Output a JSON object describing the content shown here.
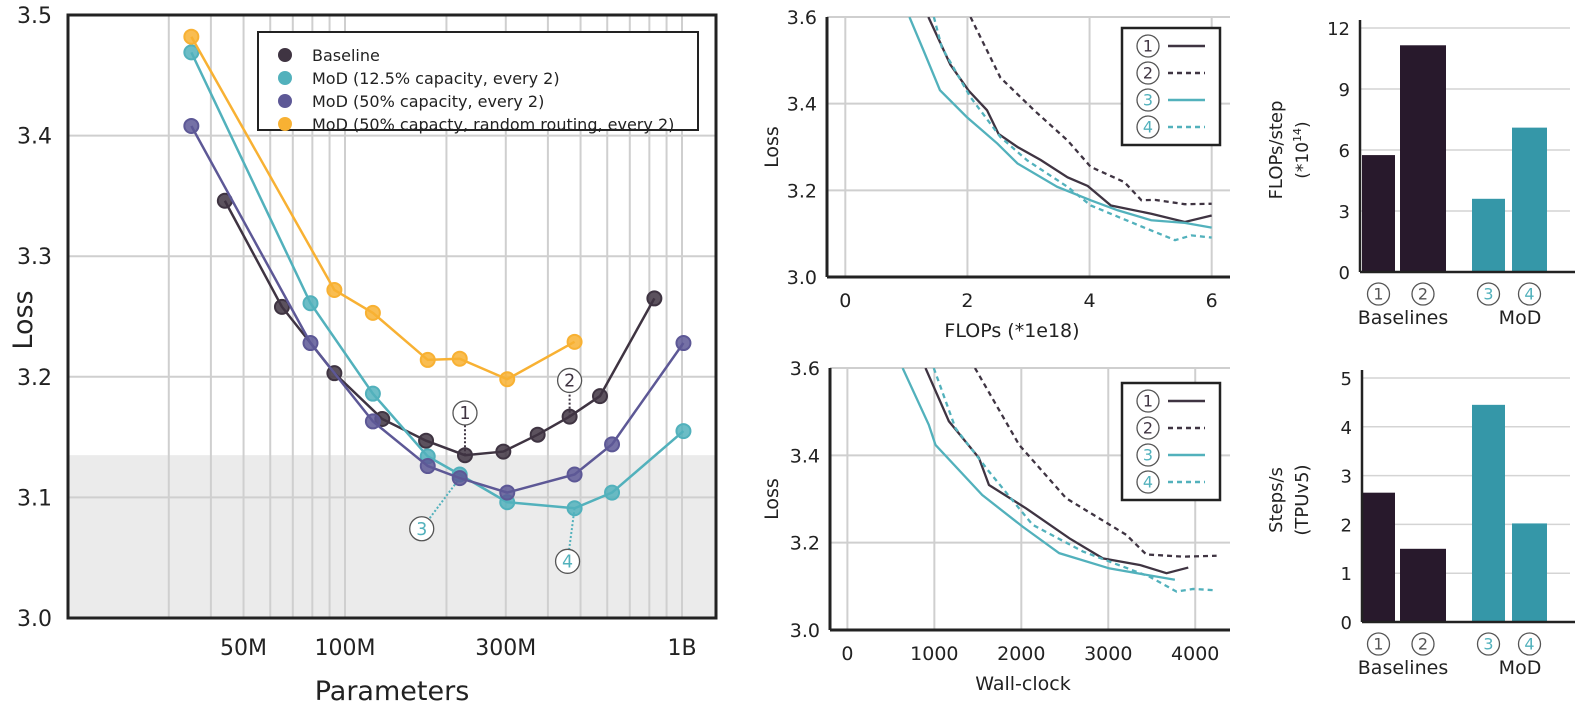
{
  "colors": {
    "baseline": "#3f3442",
    "mod125": "#52b1bc",
    "mod50": "#5d5896",
    "random": "#f8b133",
    "bar_dark": "#28192c",
    "bar_teal": "#3597a8",
    "shade": "#ebebeb",
    "grid": "#cfcfcf"
  },
  "chart_data": [
    {
      "id": "scaling",
      "type": "line",
      "xlabel": "Parameters",
      "ylabel": "Loss",
      "xscale": "log",
      "xticks": [
        {
          "value": 50000000,
          "label": "50M"
        },
        {
          "value": 100000000,
          "label": "100M"
        },
        {
          "value": 300000000,
          "label": "300M"
        },
        {
          "value": 1000000000,
          "label": "1B"
        }
      ],
      "ylim": [
        3.0,
        3.5
      ],
      "yticks": [
        "3.0",
        "3.1",
        "3.2",
        "3.3",
        "3.4",
        "3.5"
      ],
      "grid": true,
      "legend_position": "top-right",
      "shaded_below": 3.135,
      "series": [
        {
          "name": "Baseline",
          "color_key": "baseline",
          "x": [
            44000000,
            65000000,
            93000000,
            129000000,
            174000000,
            227000000,
            295000000,
            373000000,
            464000000,
            571000000,
            828000000
          ],
          "y": [
            3.346,
            3.258,
            3.203,
            3.165,
            3.147,
            3.135,
            3.138,
            3.152,
            3.167,
            3.184,
            3.265
          ]
        },
        {
          "name": "MoD (12.5% capacity, every 2)",
          "color_key": "mod125",
          "x": [
            35000000,
            79000000,
            121000000,
            176000000,
            219000000,
            303000000,
            480000000,
            620000000,
            1010000000
          ],
          "y": [
            3.469,
            3.261,
            3.186,
            3.134,
            3.119,
            3.096,
            3.091,
            3.104,
            3.155
          ]
        },
        {
          "name": "MoD (50% capacity, every 2)",
          "color_key": "mod50",
          "x": [
            35000000,
            79000000,
            121000000,
            176000000,
            219000000,
            303000000,
            480000000,
            620000000,
            1010000000
          ],
          "y": [
            3.408,
            3.228,
            3.163,
            3.126,
            3.116,
            3.104,
            3.119,
            3.144,
            3.228
          ]
        },
        {
          "name": "MoD (50% capacty, random routing, every 2)",
          "color_key": "random",
          "x": [
            35000000,
            93000000,
            121000000,
            176000000,
            219000000,
            303000000,
            480000000
          ],
          "y": [
            3.482,
            3.272,
            3.253,
            3.214,
            3.215,
            3.198,
            3.229
          ]
        }
      ],
      "annotations": [
        {
          "label": "1",
          "color_key": "baseline",
          "x": 227000000,
          "y": 3.135,
          "text_y": 3.17
        },
        {
          "label": "2",
          "color_key": "baseline",
          "x": 464000000,
          "y": 3.167,
          "text_y": 3.197
        },
        {
          "label": "3",
          "color_key": "mod125",
          "x": 219000000,
          "y": 3.116,
          "text_y": 3.074
        },
        {
          "label": "4",
          "color_key": "mod125",
          "x": 480000000,
          "y": 3.091,
          "text_y": 3.047
        }
      ]
    },
    {
      "id": "flops",
      "type": "line",
      "xlabel": "FLOPs (*1e18)",
      "ylabel": "Loss",
      "xlim": [
        -0.3,
        6.3
      ],
      "ylim": [
        3.0,
        3.6
      ],
      "xticks": [
        "0",
        "2",
        "4",
        "6"
      ],
      "yticks": [
        "3.0",
        "3.2",
        "3.4",
        "3.6"
      ],
      "grid": true,
      "legend_position": "top-right",
      "series": [
        {
          "name": "1",
          "color_key": "baseline",
          "dashed": false,
          "x": [
            1.36,
            1.72,
            2.02,
            2.32,
            2.51,
            2.82,
            3.2,
            3.64,
            3.97,
            4.35,
            5.01,
            5.56,
            6.0
          ],
          "y": [
            3.6,
            3.49,
            3.43,
            3.385,
            3.33,
            3.3,
            3.27,
            3.23,
            3.21,
            3.165,
            3.146,
            3.127,
            3.142
          ]
        },
        {
          "name": "2",
          "color_key": "baseline",
          "dashed": true,
          "x": [
            2.05,
            2.54,
            3.09,
            3.64,
            4.02,
            4.57,
            4.85,
            5.07,
            5.56,
            6.0
          ],
          "y": [
            3.6,
            3.46,
            3.385,
            3.315,
            3.254,
            3.219,
            3.177,
            3.178,
            3.168,
            3.169
          ]
        },
        {
          "name": "3",
          "color_key": "mod125",
          "dashed": false,
          "x": [
            1.05,
            1.28,
            1.55,
            1.99,
            2.49,
            2.82,
            3.47,
            4.02,
            4.46,
            5.01,
            5.56,
            6.0
          ],
          "y": [
            3.6,
            3.523,
            3.431,
            3.369,
            3.308,
            3.262,
            3.208,
            3.177,
            3.154,
            3.131,
            3.125,
            3.114
          ]
        },
        {
          "name": "4",
          "color_key": "mod125",
          "dashed": true,
          "x": [
            1.45,
            1.58,
            2.05,
            2.54,
            2.98,
            3.64,
            4.02,
            4.74,
            5.4,
            5.67,
            6.0
          ],
          "y": [
            3.6,
            3.53,
            3.415,
            3.323,
            3.269,
            3.208,
            3.165,
            3.123,
            3.085,
            3.096,
            3.091
          ]
        }
      ]
    },
    {
      "id": "wallclock",
      "type": "line",
      "xlabel": "Wall-clock",
      "ylabel": "Loss",
      "xlim": [
        -200,
        4400
      ],
      "ylim": [
        3.0,
        3.6
      ],
      "xticks": [
        "0",
        "1000",
        "2000",
        "3000",
        "4000"
      ],
      "yticks": [
        "3.0",
        "3.2",
        "3.4",
        "3.6"
      ],
      "grid": true,
      "legend_position": "top-right",
      "series": [
        {
          "name": "1",
          "color_key": "baseline",
          "dashed": false,
          "x": [
            898,
            1167,
            1513,
            1628,
            2052,
            2553,
            2938,
            3362,
            3670,
            3920
          ],
          "y": [
            3.6,
            3.478,
            3.394,
            3.332,
            3.279,
            3.21,
            3.164,
            3.149,
            3.13,
            3.143
          ]
        },
        {
          "name": "2",
          "color_key": "baseline",
          "dashed": true,
          "x": [
            1467,
            1975,
            2514,
            3207,
            3437,
            3861,
            4246
          ],
          "y": [
            3.6,
            3.424,
            3.302,
            3.218,
            3.173,
            3.168,
            3.17
          ]
        },
        {
          "name": "3",
          "color_key": "mod125",
          "dashed": false,
          "x": [
            635,
            936,
            1013,
            1551,
            2013,
            2436,
            3014,
            3766
          ],
          "y": [
            3.6,
            3.47,
            3.424,
            3.309,
            3.237,
            3.176,
            3.141,
            3.115
          ]
        },
        {
          "name": "4",
          "color_key": "mod125",
          "dashed": true,
          "x": [
            993,
            1243,
            1628,
            2129,
            2706,
            3476,
            3785,
            3977,
            4227
          ],
          "y": [
            3.6,
            3.462,
            3.363,
            3.241,
            3.18,
            3.122,
            3.088,
            3.094,
            3.091
          ]
        }
      ]
    },
    {
      "id": "flops_per_step",
      "type": "bar",
      "ylabel": [
        "FLOPs/step",
        "(*10",
        "14",
        ")"
      ],
      "ylim": [
        0,
        12
      ],
      "yticks": [
        "0",
        "3",
        "6",
        "9",
        "12"
      ],
      "categories": [
        "1",
        "2",
        "3",
        "4"
      ],
      "groups": [
        "Baselines",
        "MoD"
      ],
      "values": [
        5.75,
        11.15,
        3.6,
        7.1
      ]
    },
    {
      "id": "steps_per_sec",
      "type": "bar",
      "ylabel": [
        "Steps/s",
        "(TPUv5)"
      ],
      "ylim": [
        0,
        5
      ],
      "yticks": [
        "0",
        "1",
        "2",
        "3",
        "4",
        "5"
      ],
      "categories": [
        "1",
        "2",
        "3",
        "4"
      ],
      "groups": [
        "Baselines",
        "MoD"
      ],
      "values": [
        2.65,
        1.5,
        4.45,
        2.02
      ]
    }
  ]
}
